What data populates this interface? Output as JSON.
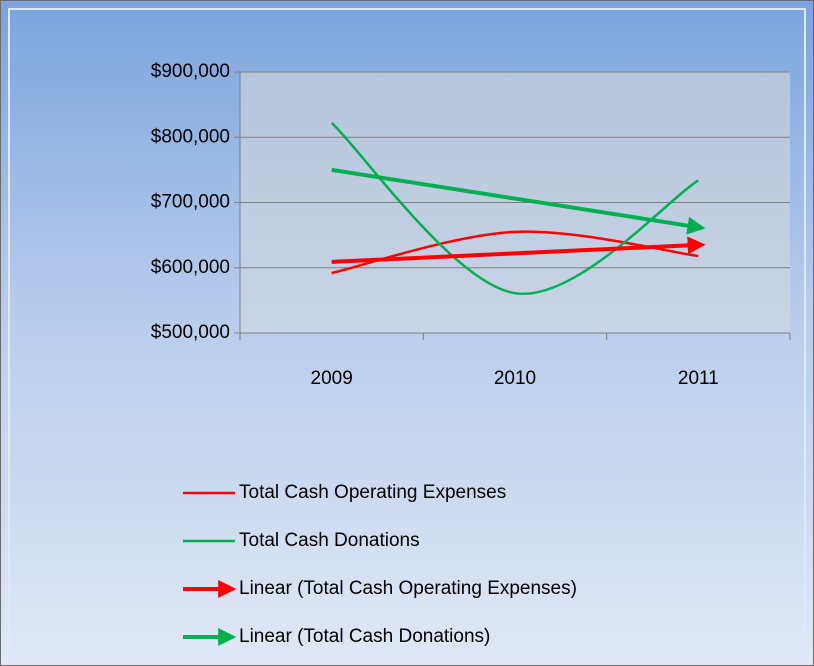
{
  "chart_data": {
    "type": "line",
    "categories": [
      "2009",
      "2010",
      "2011"
    ],
    "ylim": [
      500000,
      900000
    ],
    "yticks": [
      {
        "value": 500000,
        "label": "$500,000"
      },
      {
        "value": 600000,
        "label": "$600,000"
      },
      {
        "value": 700000,
        "label": "$700,000"
      },
      {
        "value": 800000,
        "label": "$800,000"
      },
      {
        "value": 900000,
        "label": "$900,000"
      }
    ],
    "grid": true,
    "legend": "bottom",
    "series": [
      {
        "name": "Total Cash Operating Expenses",
        "color": "#ff0000",
        "smooth": true,
        "values": [
          592000,
          655000,
          618000
        ]
      },
      {
        "name": "Total Cash Donations",
        "color": "#00b050",
        "smooth": true,
        "values": [
          822000,
          561000,
          734000
        ]
      },
      {
        "name": "Linear (Total Cash Operating Expenses)",
        "color": "#ff0000",
        "trend": true,
        "values": [
          609000,
          622000,
          635000
        ]
      },
      {
        "name": "Linear (Total Cash Donations)",
        "color": "#00b050",
        "trend": true,
        "values": [
          750000,
          706000,
          662000
        ]
      }
    ]
  }
}
